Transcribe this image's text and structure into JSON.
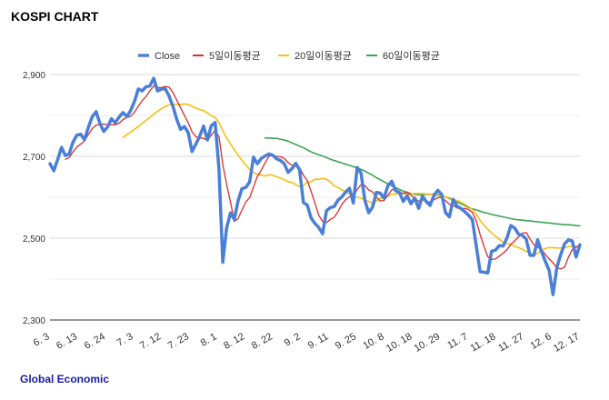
{
  "header": {
    "title": "KOSPI CHART"
  },
  "footer": {
    "source": "Global Economic"
  },
  "chart_data": {
    "type": "line",
    "title": "KOSPI CHART",
    "xlabel": "",
    "ylabel": "",
    "ylim": [
      2300,
      2950
    ],
    "yticks": [
      2300,
      2500,
      2700,
      2900
    ],
    "ytick_labels": [
      "2,300",
      "2,500",
      "2,700",
      "2,900"
    ],
    "xtick_labels": [
      "6. 3",
      "6. 13",
      "6. 24",
      "7. 3",
      "7. 12",
      "7. 23",
      "8. 1",
      "8. 12",
      "8. 22",
      "9. 2",
      "9. 11",
      "9. 25",
      "10. 8",
      "10. 18",
      "10. 29",
      "11. 7",
      "11. 18",
      "11. 27",
      "12. 6",
      "12. 17"
    ],
    "grid": true,
    "legend_position": "top",
    "series": [
      {
        "name": "Close",
        "color": "#4a7fd8",
        "values": [
          2682,
          2665,
          2692,
          2722,
          2702,
          2706,
          2735,
          2752,
          2754,
          2741,
          2771,
          2797,
          2809,
          2781,
          2761,
          2772,
          2792,
          2782,
          2796,
          2807,
          2797,
          2812,
          2834,
          2865,
          2860,
          2870,
          2872,
          2891,
          2860,
          2864,
          2866,
          2847,
          2823,
          2791,
          2766,
          2773,
          2758,
          2712,
          2730,
          2750,
          2774,
          2740,
          2775,
          2783,
          2669,
          2441,
          2525,
          2562,
          2546,
          2592,
          2621,
          2624,
          2638,
          2698,
          2682,
          2695,
          2701,
          2706,
          2703,
          2694,
          2690,
          2682,
          2661,
          2670,
          2683,
          2667,
          2587,
          2581,
          2549,
          2536,
          2526,
          2511,
          2567,
          2575,
          2577,
          2593,
          2601,
          2613,
          2622,
          2586,
          2673,
          2659,
          2593,
          2562,
          2576,
          2612,
          2610,
          2598,
          2629,
          2639,
          2616,
          2612,
          2590,
          2604,
          2584,
          2598,
          2573,
          2603,
          2589,
          2580,
          2605,
          2617,
          2607,
          2563,
          2552,
          2595,
          2578,
          2573,
          2565,
          2556,
          2545,
          2482,
          2418,
          2417,
          2415,
          2468,
          2471,
          2482,
          2481,
          2500,
          2531,
          2525,
          2510,
          2507,
          2498,
          2458,
          2458,
          2496,
          2467,
          2443,
          2421,
          2362,
          2429,
          2460,
          2486,
          2496,
          2493,
          2454,
          2484
        ]
      },
      {
        "name": "5일이동평균",
        "color": "#dd2b2b",
        "values": [
          null,
          null,
          null,
          null,
          2693,
          2697,
          2711,
          2723,
          2730,
          2738,
          2753,
          2768,
          2776,
          2778,
          2779,
          2777,
          2777,
          2777,
          2781,
          2790,
          2795,
          2798,
          2808,
          2823,
          2836,
          2846,
          2860,
          2872,
          2868,
          2868,
          2871,
          2869,
          2856,
          2838,
          2819,
          2800,
          2782,
          2760,
          2748,
          2745,
          2744,
          2739,
          2752,
          2764,
          2748,
          2681,
          2632,
          2588,
          2541,
          2548,
          2569,
          2589,
          2599,
          2625,
          2651,
          2666,
          2684,
          2700,
          2703,
          2700,
          2699,
          2695,
          2685,
          2678,
          2676,
          2672,
          2654,
          2641,
          2614,
          2586,
          2556,
          2541,
          2538,
          2546,
          2551,
          2565,
          2583,
          2594,
          2601,
          2603,
          2619,
          2631,
          2629,
          2618,
          2613,
          2600,
          2591,
          2592,
          2605,
          2618,
          2620,
          2613,
          2609,
          2613,
          2605,
          2598,
          2590,
          2594,
          2590,
          2588,
          2594,
          2599,
          2599,
          2592,
          2583,
          2580,
          2574,
          2572,
          2573,
          2570,
          2563,
          2543,
          2509,
          2480,
          2455,
          2448,
          2449,
          2456,
          2463,
          2472,
          2485,
          2493,
          2503,
          2512,
          2514,
          2498,
          2484,
          2478,
          2472,
          2460,
          2449,
          2440,
          2427,
          2425,
          2429,
          2453,
          2472,
          2478,
          2483
        ]
      },
      {
        "name": "20일이동평균",
        "color": "#f2c012",
        "values": [
          null,
          null,
          null,
          null,
          null,
          null,
          null,
          null,
          null,
          null,
          null,
          null,
          null,
          null,
          null,
          null,
          null,
          null,
          null,
          2746,
          2753,
          2759,
          2766,
          2773,
          2781,
          2788,
          2795,
          2803,
          2810,
          2816,
          2822,
          2826,
          2827,
          2827,
          2827,
          2828,
          2827,
          2822,
          2818,
          2814,
          2812,
          2806,
          2800,
          2795,
          2783,
          2763,
          2745,
          2731,
          2716,
          2703,
          2690,
          2679,
          2668,
          2661,
          2656,
          2654,
          2652,
          2655,
          2654,
          2650,
          2647,
          2643,
          2638,
          2636,
          2631,
          2626,
          2629,
          2637,
          2638,
          2644,
          2644,
          2646,
          2644,
          2638,
          2628,
          2624,
          2618,
          2613,
          2609,
          2601,
          2600,
          2598,
          2593,
          2590,
          2585,
          2591,
          2597,
          2600,
          2604,
          2607,
          2608,
          2609,
          2609,
          2608,
          2608,
          2609,
          2609,
          2609,
          2608,
          2608,
          2606,
          2604,
          2603,
          2601,
          2599,
          2595,
          2592,
          2588,
          2583,
          2577,
          2570,
          2559,
          2544,
          2532,
          2522,
          2513,
          2505,
          2497,
          2490,
          2487,
          2485,
          2480,
          2477,
          2473,
          2468,
          2463,
          2459,
          2463,
          2470,
          2475,
          2477,
          2477,
          2476,
          2476,
          2477,
          2479,
          2481,
          2480,
          2480
        ]
      },
      {
        "name": "60일이동평균",
        "color": "#3ea354",
        "values": [
          null,
          null,
          null,
          null,
          null,
          null,
          null,
          null,
          null,
          null,
          null,
          null,
          null,
          null,
          null,
          null,
          null,
          null,
          null,
          null,
          null,
          null,
          null,
          null,
          null,
          null,
          null,
          null,
          null,
          null,
          null,
          null,
          null,
          null,
          null,
          null,
          null,
          null,
          null,
          null,
          null,
          null,
          null,
          null,
          null,
          null,
          null,
          null,
          null,
          null,
          null,
          null,
          null,
          null,
          null,
          null,
          2745,
          2745,
          2744,
          2744,
          2742,
          2740,
          2737,
          2733,
          2729,
          2725,
          2721,
          2716,
          2711,
          2707,
          2704,
          2701,
          2697,
          2693,
          2690,
          2687,
          2684,
          2681,
          2678,
          2675,
          2672,
          2668,
          2664,
          2659,
          2654,
          2648,
          2643,
          2638,
          2633,
          2628,
          2624,
          2619,
          2615,
          2612,
          2609,
          2607,
          2606,
          2606,
          2607,
          2607,
          2608,
          2606,
          2604,
          2601,
          2597,
          2593,
          2588,
          2584,
          2580,
          2575,
          2572,
          2569,
          2566,
          2563,
          2561,
          2558,
          2556,
          2554,
          2552,
          2550,
          2548,
          2546,
          2545,
          2544,
          2543,
          2542,
          2541,
          2540,
          2539,
          2538,
          2537,
          2536,
          2535,
          2534,
          2533,
          2533,
          2532,
          2531,
          2530
        ]
      }
    ]
  }
}
